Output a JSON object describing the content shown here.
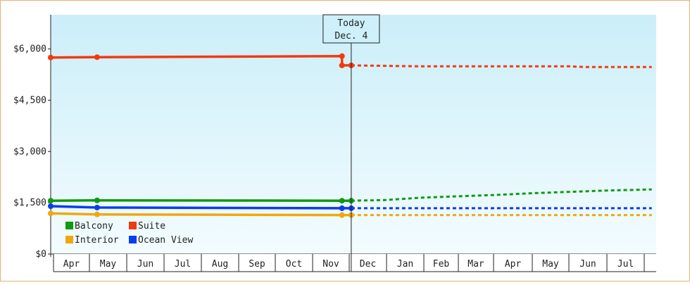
{
  "chart_data": {
    "type": "line",
    "x_labels": [
      "Apr",
      "May",
      "Jun",
      "Jul",
      "Aug",
      "Sep",
      "Oct",
      "Nov",
      "Dec",
      "Jan",
      "Feb",
      "Mar",
      "Apr",
      "May",
      "Jun",
      "Jul"
    ],
    "y_ticks": [
      "$0",
      "$1,500",
      "$3,000",
      "$4,500",
      "$6,000"
    ],
    "ylim": [
      0,
      7000
    ],
    "grid": false,
    "today_marker": {
      "line1": "Today",
      "line2": "Dec. 4",
      "x": 8.1
    },
    "series": [
      {
        "name": "Balcony",
        "color": "#0f9a0f",
        "actual": [
          [
            0,
            1560
          ],
          [
            1.25,
            1570
          ],
          [
            7.85,
            1560
          ],
          [
            8.1,
            1560
          ]
        ],
        "forecast": [
          [
            8.1,
            1560
          ],
          [
            9,
            1580
          ],
          [
            10,
            1650
          ],
          [
            11,
            1690
          ],
          [
            12,
            1730
          ],
          [
            13,
            1780
          ],
          [
            14,
            1820
          ],
          [
            15,
            1860
          ],
          [
            16.2,
            1890
          ]
        ]
      },
      {
        "name": "Suite",
        "color": "#f23a0e",
        "actual": [
          [
            0,
            5750
          ],
          [
            1.25,
            5760
          ],
          [
            7.85,
            5790
          ],
          [
            7.85,
            5520
          ],
          [
            8.1,
            5520
          ]
        ],
        "forecast": [
          [
            8.1,
            5520
          ],
          [
            10,
            5490
          ],
          [
            12,
            5490
          ],
          [
            14,
            5490
          ],
          [
            14.4,
            5470
          ],
          [
            16.2,
            5470
          ]
        ]
      },
      {
        "name": "Interior",
        "color": "#f0a80e",
        "actual": [
          [
            0,
            1190
          ],
          [
            1.25,
            1160
          ],
          [
            7.85,
            1140
          ],
          [
            8.1,
            1140
          ]
        ],
        "forecast": [
          [
            8.1,
            1140
          ],
          [
            16.2,
            1140
          ]
        ]
      },
      {
        "name": "Ocean View",
        "color": "#0a3cf0",
        "actual": [
          [
            0,
            1400
          ],
          [
            1.25,
            1360
          ],
          [
            7.85,
            1340
          ],
          [
            8.1,
            1340
          ]
        ],
        "forecast": [
          [
            8.1,
            1340
          ],
          [
            16.2,
            1340
          ]
        ]
      }
    ]
  }
}
